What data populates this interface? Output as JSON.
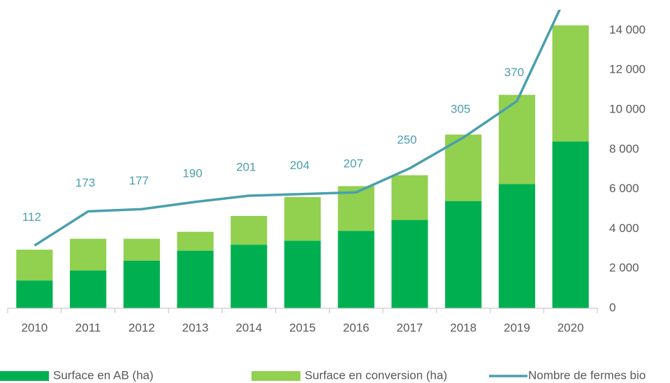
{
  "chart_data": {
    "type": "stacked-bar-line",
    "categories": [
      "2010",
      "2011",
      "2012",
      "2013",
      "2014",
      "2015",
      "2016",
      "2017",
      "2018",
      "2019",
      "2020"
    ],
    "series": [
      {
        "name": "Surface en AB (ha)",
        "color": "#00b050",
        "values": [
          1400,
          1900,
          2400,
          2900,
          3200,
          3400,
          3900,
          4450,
          5400,
          6250,
          8400
        ]
      },
      {
        "name": "Surface en conversion (ha)",
        "color": "#92d050",
        "values": [
          1550,
          1600,
          1100,
          950,
          1450,
          2200,
          2250,
          2250,
          3350,
          4500,
          5850
        ]
      },
      {
        "name": "Nombre de fermes bio",
        "color": "#4a9fad",
        "axis": "y2",
        "values": [
          112,
          173,
          177,
          190,
          201,
          204,
          207,
          250,
          305,
          370,
          575
        ],
        "value_labels": [
          "112",
          "173",
          "177",
          "190",
          "201",
          "204",
          "207",
          "250",
          "305",
          "370",
          null
        ]
      }
    ],
    "ylim": [
      0,
      15000
    ],
    "yticks": [
      0,
      {
        "value": 2000,
        "label": "2 000"
      },
      {
        "value": 4000,
        "label": "4 000"
      },
      {
        "value": 6000,
        "label": "6 000"
      },
      {
        "value": 8000,
        "label": "8 000"
      },
      {
        "value": 10000,
        "label": "10 000"
      },
      {
        "value": 12000,
        "label": "12 000"
      },
      {
        "value": 14000,
        "label": "14 000"
      }
    ],
    "y2lim": [
      0,
      532
    ],
    "legend": "bottom"
  }
}
